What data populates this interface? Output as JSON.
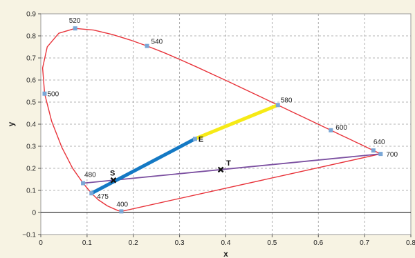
{
  "chart_data": {
    "type": "scatter",
    "xlabel": "x",
    "ylabel": "y",
    "xlim": [
      0,
      0.8
    ],
    "ylim": [
      -0.1,
      0.9
    ],
    "x_ticks": [
      0,
      0.1,
      0.2,
      0.3,
      0.4,
      0.5,
      0.6,
      0.7,
      0.8
    ],
    "x_tick_labels": [
      "0",
      "0.1",
      "0.2",
      "0.3",
      "0.4",
      "0.5",
      "0.6",
      "0.7",
      "0.8"
    ],
    "y_ticks": [
      -0.1,
      0,
      0.1,
      0.2,
      0.3,
      0.4,
      0.5,
      0.6,
      0.7,
      0.8,
      0.9
    ],
    "y_tick_labels": [
      "−0.1",
      "0",
      "0.1",
      "0.2",
      "0.3",
      "0.4",
      "0.5",
      "0.6",
      "0.7",
      "0.8",
      "0.9"
    ],
    "grid": true,
    "colors": {
      "locus": "#e8333a",
      "markers": "#7aa7d6",
      "purple_line": "#7b4fa0",
      "blue_segment": "#1479c4",
      "yellow_segment": "#f6ea16",
      "grid": "#9a9a9a"
    },
    "locus": [
      [
        0.1741,
        0.005
      ],
      [
        0.1666,
        0.0089
      ],
      [
        0.144,
        0.0297
      ],
      [
        0.1241,
        0.0578
      ],
      [
        0.1096,
        0.0868
      ],
      [
        0.0913,
        0.1327
      ],
      [
        0.0687,
        0.2007
      ],
      [
        0.0454,
        0.295
      ],
      [
        0.0235,
        0.4127
      ],
      [
        0.0082,
        0.5384
      ],
      [
        0.0039,
        0.6548
      ],
      [
        0.0139,
        0.7502
      ],
      [
        0.0389,
        0.812
      ],
      [
        0.0743,
        0.8338
      ],
      [
        0.1142,
        0.8262
      ],
      [
        0.1547,
        0.8059
      ],
      [
        0.1929,
        0.7816
      ],
      [
        0.2296,
        0.7543
      ],
      [
        0.2658,
        0.7243
      ],
      [
        0.3016,
        0.6923
      ],
      [
        0.3373,
        0.6589
      ],
      [
        0.3731,
        0.6245
      ],
      [
        0.4087,
        0.5896
      ],
      [
        0.4441,
        0.5547
      ],
      [
        0.4788,
        0.5202
      ],
      [
        0.5125,
        0.4866
      ],
      [
        0.5448,
        0.4544
      ],
      [
        0.5752,
        0.4242
      ],
      [
        0.6029,
        0.3965
      ],
      [
        0.627,
        0.3725
      ],
      [
        0.6482,
        0.3514
      ],
      [
        0.6658,
        0.334
      ],
      [
        0.6801,
        0.3197
      ],
      [
        0.6915,
        0.3083
      ],
      [
        0.7006,
        0.2993
      ],
      [
        0.7079,
        0.292
      ],
      [
        0.714,
        0.2859
      ],
      [
        0.719,
        0.2809
      ],
      [
        0.723,
        0.277
      ],
      [
        0.726,
        0.274
      ],
      [
        0.7283,
        0.2717
      ],
      [
        0.73,
        0.27
      ],
      [
        0.732,
        0.268
      ],
      [
        0.7347,
        0.2653
      ]
    ],
    "wavelength_markers": [
      {
        "label": "520",
        "x": 0.0743,
        "y": 0.8338
      },
      {
        "label": "540",
        "x": 0.2296,
        "y": 0.7543
      },
      {
        "label": "500",
        "x": 0.0082,
        "y": 0.5384
      },
      {
        "label": "580",
        "x": 0.5125,
        "y": 0.4866
      },
      {
        "label": "600",
        "x": 0.627,
        "y": 0.3725
      },
      {
        "label": "640",
        "x": 0.719,
        "y": 0.2809
      },
      {
        "label": "700",
        "x": 0.7347,
        "y": 0.2653
      },
      {
        "label": "480",
        "x": 0.0913,
        "y": 0.1327
      },
      {
        "label": "475",
        "x": 0.1096,
        "y": 0.0868
      },
      {
        "label": "400",
        "x": 0.1741,
        "y": 0.005
      }
    ],
    "purple_line": [
      [
        0.0913,
        0.1327
      ],
      [
        0.7347,
        0.2653
      ]
    ],
    "blue_segment": [
      [
        0.1096,
        0.0868
      ],
      [
        0.3333,
        0.3333
      ]
    ],
    "yellow_segment": [
      [
        0.3333,
        0.3333
      ],
      [
        0.5125,
        0.4866
      ]
    ],
    "points": [
      {
        "label": "S",
        "x": 0.157,
        "y": 0.146,
        "marker": "x"
      },
      {
        "label": "T",
        "x": 0.389,
        "y": 0.194,
        "marker": "x"
      },
      {
        "label": "E",
        "x": 0.3333,
        "y": 0.3333,
        "marker": "square"
      }
    ]
  }
}
